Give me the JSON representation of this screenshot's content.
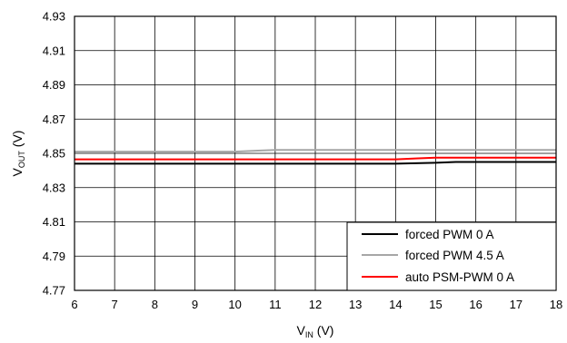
{
  "chart_data": {
    "type": "line",
    "xlabel": {
      "main": "V",
      "sub": "IN",
      "unit": " (V)"
    },
    "ylabel": {
      "main": "V",
      "sub": "OUT",
      "unit": " (V)"
    },
    "xlim": [
      6,
      18
    ],
    "ylim": [
      4.77,
      4.93
    ],
    "xticks": [
      6,
      7,
      8,
      9,
      10,
      11,
      12,
      13,
      14,
      15,
      16,
      17,
      18
    ],
    "yticks": [
      "4.77",
      "4.79",
      "4.81",
      "4.83",
      "4.85",
      "4.87",
      "4.89",
      "4.91",
      "4.93"
    ],
    "grid": true,
    "legend_position": "bottom-right",
    "series": [
      {
        "name": "forced PWM 0 A",
        "color": "#000000",
        "points": [
          [
            6,
            4.844
          ],
          [
            10,
            4.844
          ],
          [
            14,
            4.844
          ],
          [
            15,
            4.8445
          ],
          [
            15.5,
            4.845
          ],
          [
            18,
            4.845
          ]
        ]
      },
      {
        "name": "forced PWM 4.5 A",
        "color": "#a6a6a6",
        "points": [
          [
            6,
            4.851
          ],
          [
            9.5,
            4.851
          ],
          [
            10,
            4.851
          ],
          [
            10.5,
            4.8515
          ],
          [
            11,
            4.852
          ],
          [
            18,
            4.852
          ]
        ]
      },
      {
        "name": "auto PSM-PWM 0 A",
        "color": "#ff0000",
        "points": [
          [
            6,
            4.8465
          ],
          [
            13.5,
            4.8465
          ],
          [
            14,
            4.8465
          ],
          [
            14.5,
            4.847
          ],
          [
            15,
            4.8475
          ],
          [
            18,
            4.8475
          ]
        ]
      }
    ]
  }
}
